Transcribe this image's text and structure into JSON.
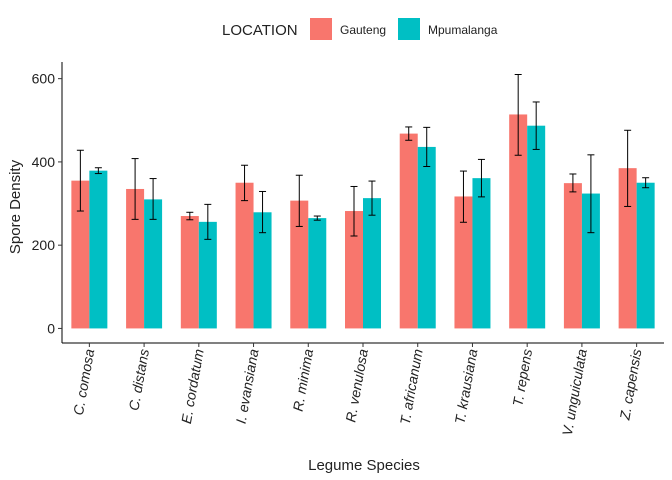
{
  "chart_data": {
    "type": "bar",
    "xlabel": "Legume Species",
    "ylabel": "Spore Density",
    "ylim": [
      -35,
      640
    ],
    "yticks": [
      0,
      200,
      400,
      600
    ],
    "grid": false,
    "legend": {
      "title": "LOCATION",
      "position": "top"
    },
    "categories": [
      "C. comosa",
      "C. distans",
      "E. cordatum",
      "I. evansiana",
      "R. minima",
      "R. venulosa",
      "T. africanum",
      "T. krausiana",
      "T. repens",
      "V. unguiculata",
      "Z. capensis"
    ],
    "series": [
      {
        "name": "Gauteng",
        "color": "#F8766D",
        "values": [
          355,
          335,
          270,
          350,
          307,
          282,
          468,
          317,
          514,
          349,
          385
        ],
        "err_low": [
          282,
          262,
          261,
          307,
          245,
          222,
          452,
          255,
          416,
          328,
          293
        ],
        "err_high": [
          428,
          408,
          279,
          392,
          368,
          341,
          484,
          378,
          610,
          371,
          476
        ]
      },
      {
        "name": "Mpumalanga",
        "color": "#00BFC4",
        "values": [
          379,
          310,
          256,
          279,
          265,
          313,
          436,
          361,
          487,
          324,
          350
        ],
        "err_low": [
          372,
          262,
          214,
          230,
          260,
          272,
          389,
          316,
          430,
          230,
          338
        ],
        "err_high": [
          386,
          360,
          298,
          329,
          270,
          354,
          483,
          406,
          544,
          417,
          362
        ]
      }
    ]
  }
}
